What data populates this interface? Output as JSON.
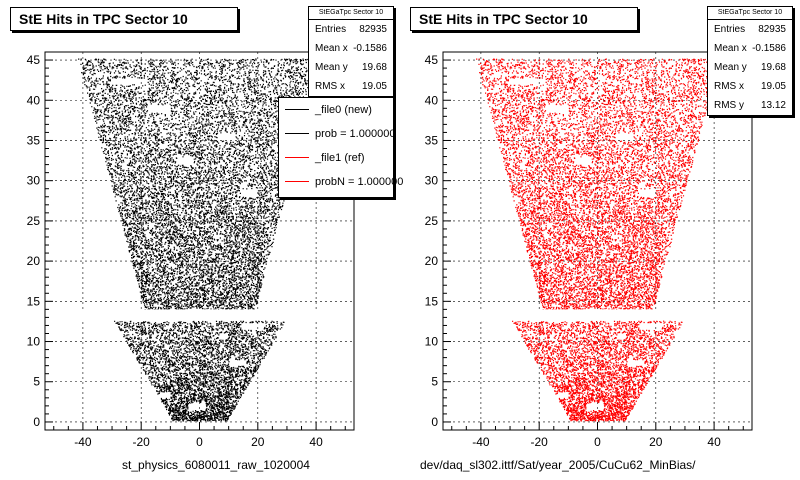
{
  "chart_data": [
    {
      "type": "scatter",
      "title": "StE Hits in TPC Sector 10",
      "marker_color": "#000000",
      "xlim": [
        -53,
        53
      ],
      "ylim": [
        -1,
        46
      ],
      "xticks": [
        -40,
        -20,
        0,
        20,
        40
      ],
      "yticks": [
        0,
        5,
        10,
        15,
        20,
        25,
        30,
        35,
        40,
        45
      ],
      "grid": true,
      "stats": {
        "header": "StEGaTpc Sector 10",
        "rows": [
          {
            "label": "Entries",
            "value": "82935"
          },
          {
            "label": "Mean x",
            "value": "-0.1586"
          },
          {
            "label": "Mean y",
            "value": "19.68"
          },
          {
            "label": "RMS x",
            "value": "19.05"
          }
        ]
      },
      "legend": {
        "placement": "top-right",
        "entries": [
          {
            "label": "_file0 (new)",
            "color": "#000000"
          },
          {
            "label": "prob = 1.000000",
            "color": "#000000"
          },
          {
            "label": "_file1 (ref)",
            "color": "#ff0000"
          },
          {
            "label": "probN = 1.000000",
            "color": "#ff0000"
          }
        ]
      },
      "footer": "st_physics_6080011_raw_1020004"
    },
    {
      "type": "scatter",
      "title": "StE Hits in TPC Sector 10",
      "marker_color": "#ff0000",
      "xlim": [
        -53,
        53
      ],
      "ylim": [
        -1,
        46
      ],
      "xticks": [
        -40,
        -20,
        0,
        20,
        40
      ],
      "yticks": [
        0,
        5,
        10,
        15,
        20,
        25,
        30,
        35,
        40,
        45
      ],
      "grid": true,
      "stats": {
        "header": "StEGaTpc Sector 10",
        "rows": [
          {
            "label": "Entries",
            "value": "82935"
          },
          {
            "label": "Mean x",
            "value": "-0.1586"
          },
          {
            "label": "Mean y",
            "value": "19.68"
          },
          {
            "label": "RMS x",
            "value": "19.05"
          },
          {
            "label": "RMS y",
            "value": "13.12"
          }
        ]
      },
      "footer": "dev/daq_sl302.ittf/Sat/year_2005/CuCu62_MinBias/"
    }
  ]
}
